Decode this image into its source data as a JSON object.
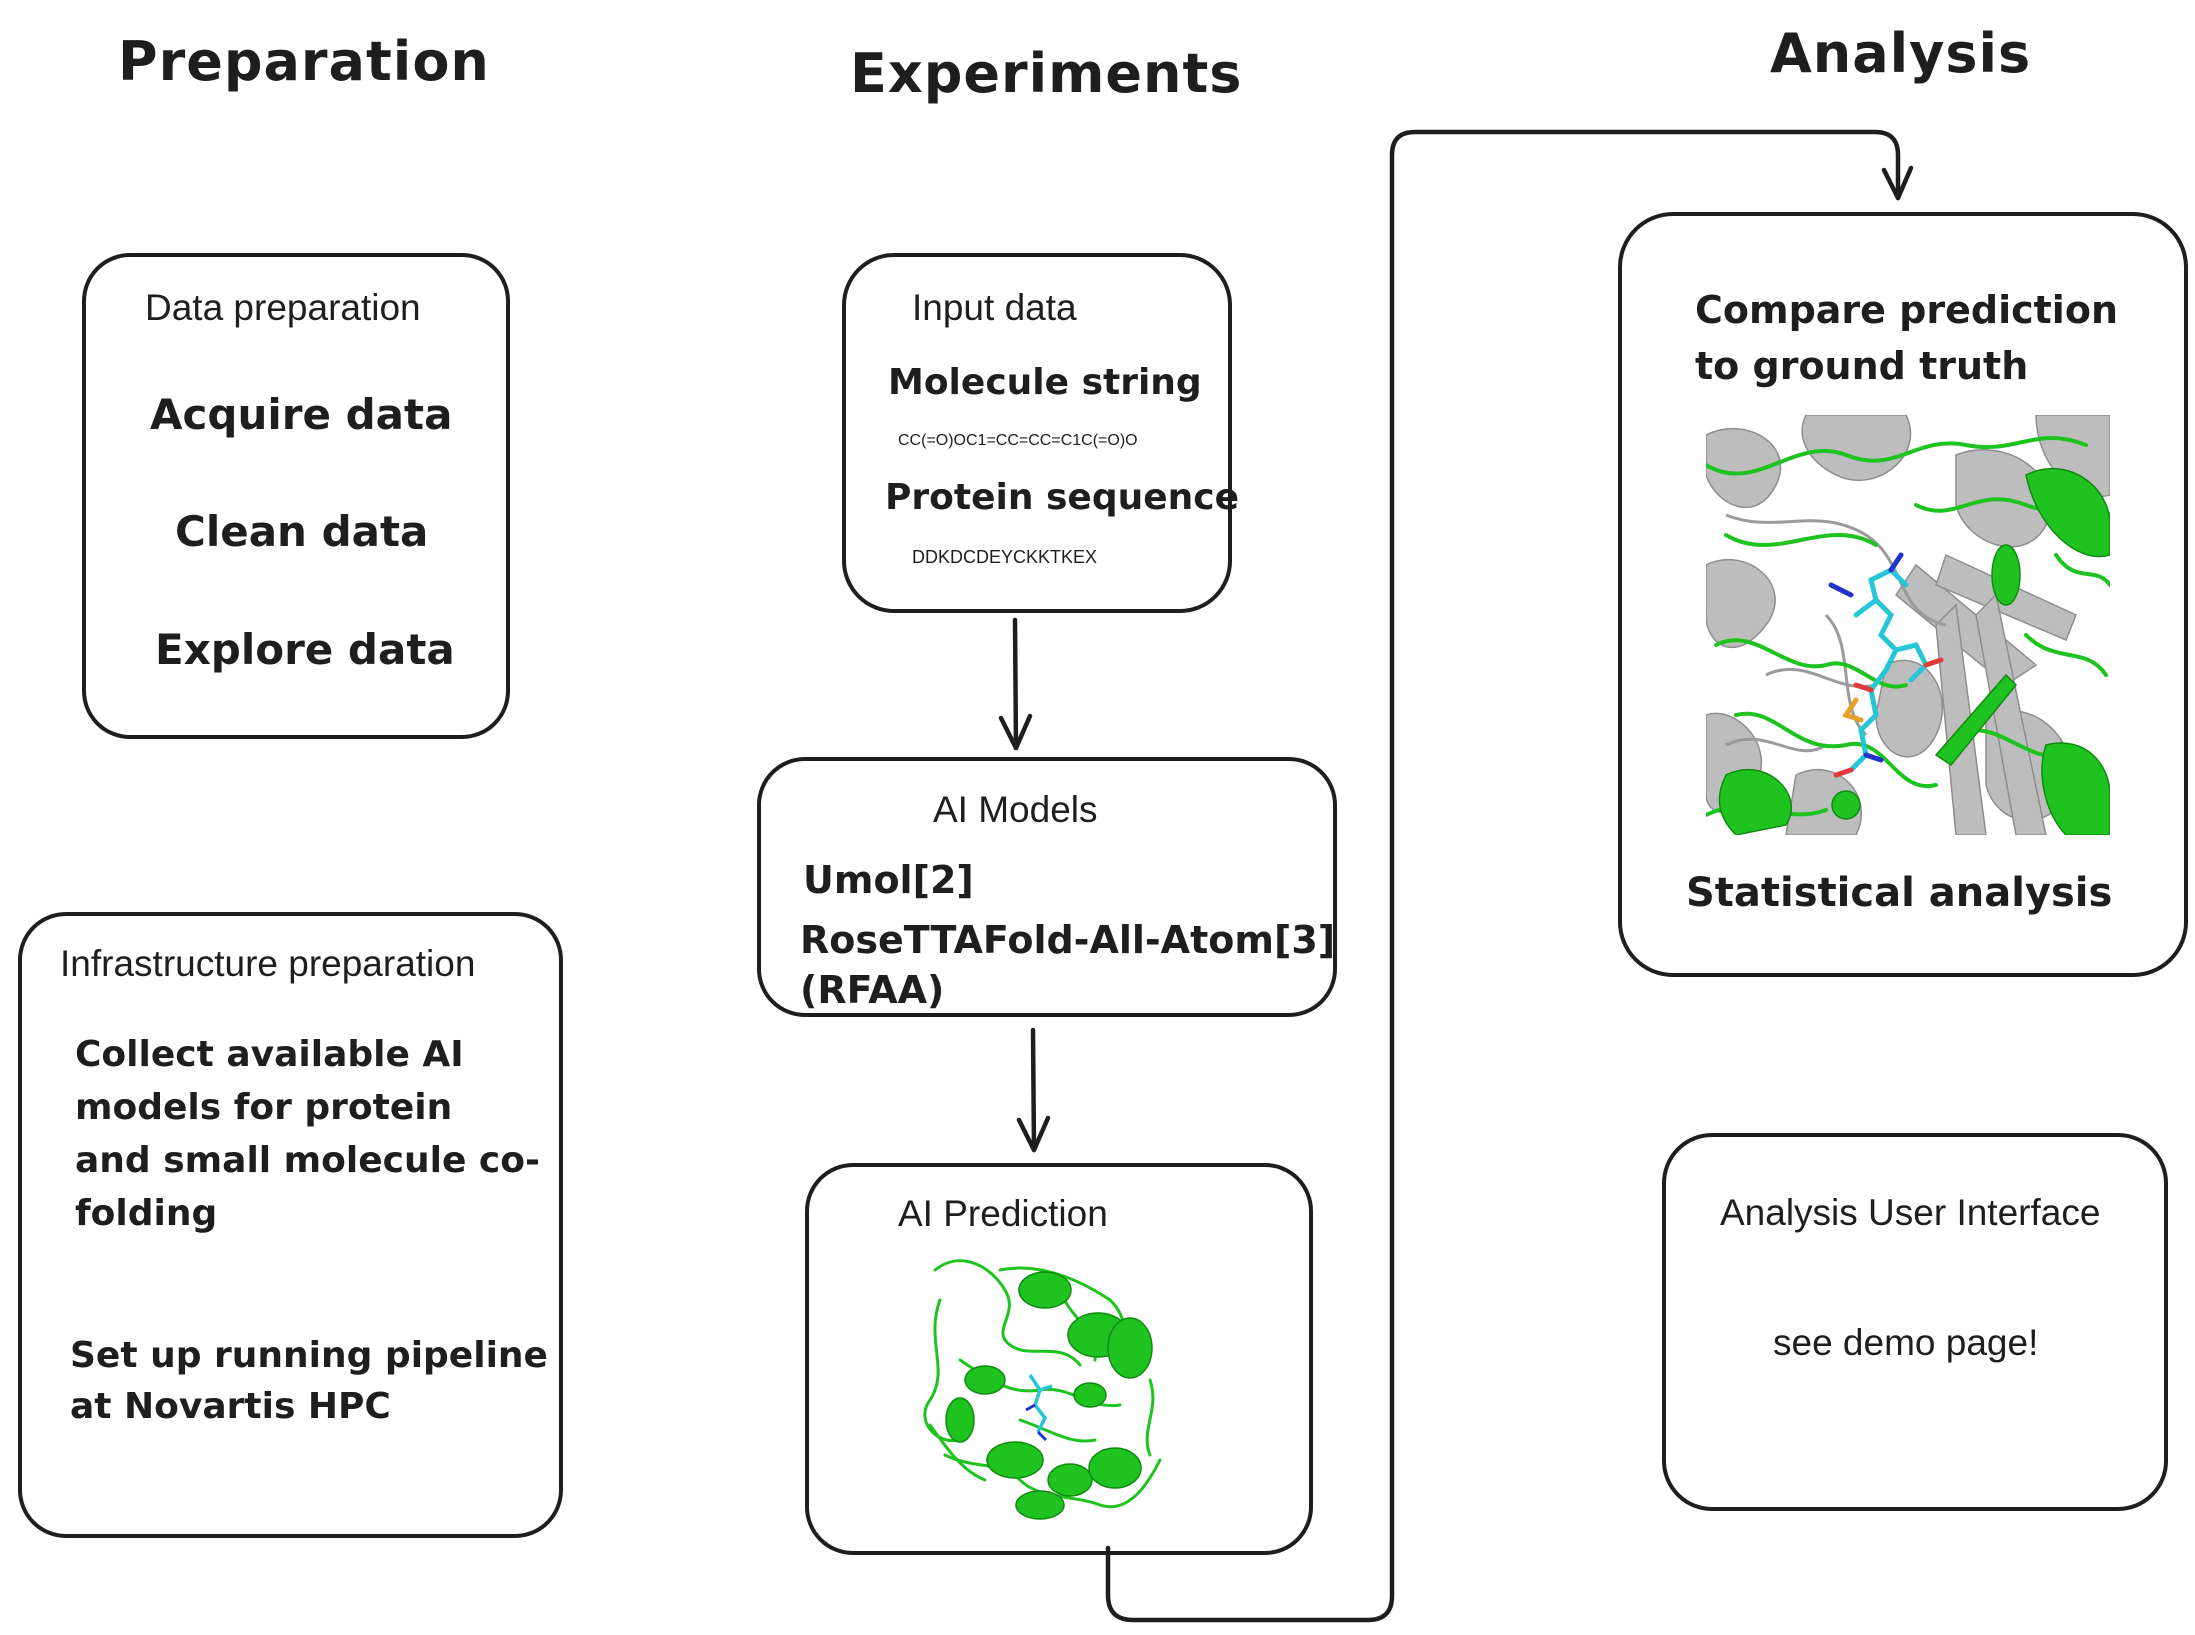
{
  "columns": {
    "preparation": "Preparation",
    "experiments": "Experiments",
    "analysis": "Analysis"
  },
  "data_preparation": {
    "title": "Data preparation",
    "items": [
      "Acquire data",
      "Clean data",
      "Explore data"
    ]
  },
  "infrastructure_preparation": {
    "title": "Infrastructure preparation",
    "collect_lines": [
      "Collect available AI",
      "models for protein",
      "and small molecule co-",
      "folding"
    ],
    "setup_lines": [
      "Set up running pipeline",
      "at Novartis HPC"
    ]
  },
  "input_data": {
    "title": "Input data",
    "molecule_label": "Molecule string",
    "molecule_value": "CC(=O)OC1=CC=CC=C1C(=O)O",
    "protein_label": "Protein sequence",
    "protein_value": "DDKDCDEYCKKTKEX"
  },
  "ai_models": {
    "title": "AI Models",
    "model_1": "Umol[2]",
    "model_2": "RoseTTAFold-All-Atom[3]",
    "model_2_abbr": "(RFAA)"
  },
  "ai_prediction": {
    "title": "AI Prediction"
  },
  "compare": {
    "lines": [
      "Compare prediction",
      "to ground truth"
    ],
    "statistical": "Statistical analysis"
  },
  "analysis_ui": {
    "title": "Analysis User Interface",
    "link": "see demo page!"
  },
  "colors": {
    "stroke": "#1e1e1e",
    "protein_green": "#1fc31f",
    "protein_gray": "#b9b9b9",
    "ligand_cyan": "#27c6d6"
  }
}
